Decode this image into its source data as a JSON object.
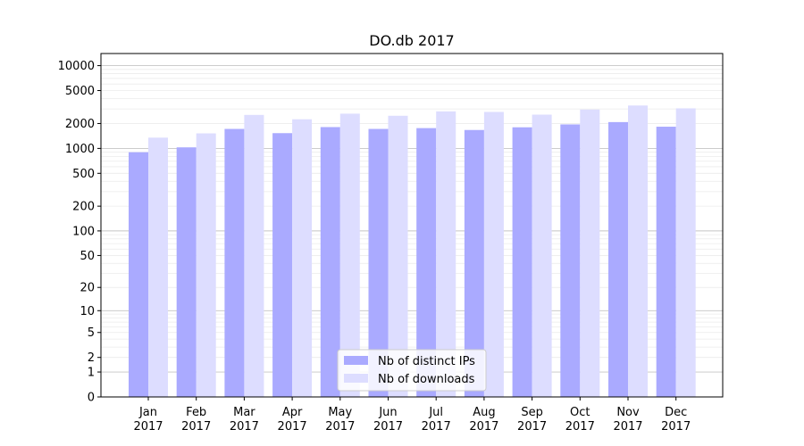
{
  "chart_data": {
    "type": "bar",
    "title": "DO.db 2017",
    "xlabel": "",
    "ylabel": "",
    "yscale": "symlog",
    "ylim": [
      0,
      14000
    ],
    "y_ticks": [
      0,
      1,
      2,
      5,
      10,
      20,
      50,
      100,
      200,
      500,
      1000,
      2000,
      5000,
      10000
    ],
    "y_tick_labels": [
      "0",
      "1",
      "2",
      "5",
      "10",
      "20",
      "50",
      "100",
      "200",
      "500",
      "1000",
      "2000",
      "5000",
      "10000"
    ],
    "categories": [
      {
        "month": "Jan",
        "year": "2017"
      },
      {
        "month": "Feb",
        "year": "2017"
      },
      {
        "month": "Mar",
        "year": "2017"
      },
      {
        "month": "Apr",
        "year": "2017"
      },
      {
        "month": "May",
        "year": "2017"
      },
      {
        "month": "Jun",
        "year": "2017"
      },
      {
        "month": "Jul",
        "year": "2017"
      },
      {
        "month": "Aug",
        "year": "2017"
      },
      {
        "month": "Sep",
        "year": "2017"
      },
      {
        "month": "Oct",
        "year": "2017"
      },
      {
        "month": "Nov",
        "year": "2017"
      },
      {
        "month": "Dec",
        "year": "2017"
      }
    ],
    "series": [
      {
        "name": "Nb of distinct IPs",
        "color": "#aaaaff",
        "values": [
          900,
          1030,
          1720,
          1530,
          1810,
          1720,
          1760,
          1670,
          1800,
          1950,
          2080,
          1830
        ]
      },
      {
        "name": "Nb of downloads",
        "color": "#ddddff",
        "values": [
          1350,
          1520,
          2540,
          2250,
          2630,
          2480,
          2800,
          2760,
          2560,
          2950,
          3300,
          3050
        ]
      }
    ],
    "grid": true,
    "legend_position": "bottom-center"
  }
}
